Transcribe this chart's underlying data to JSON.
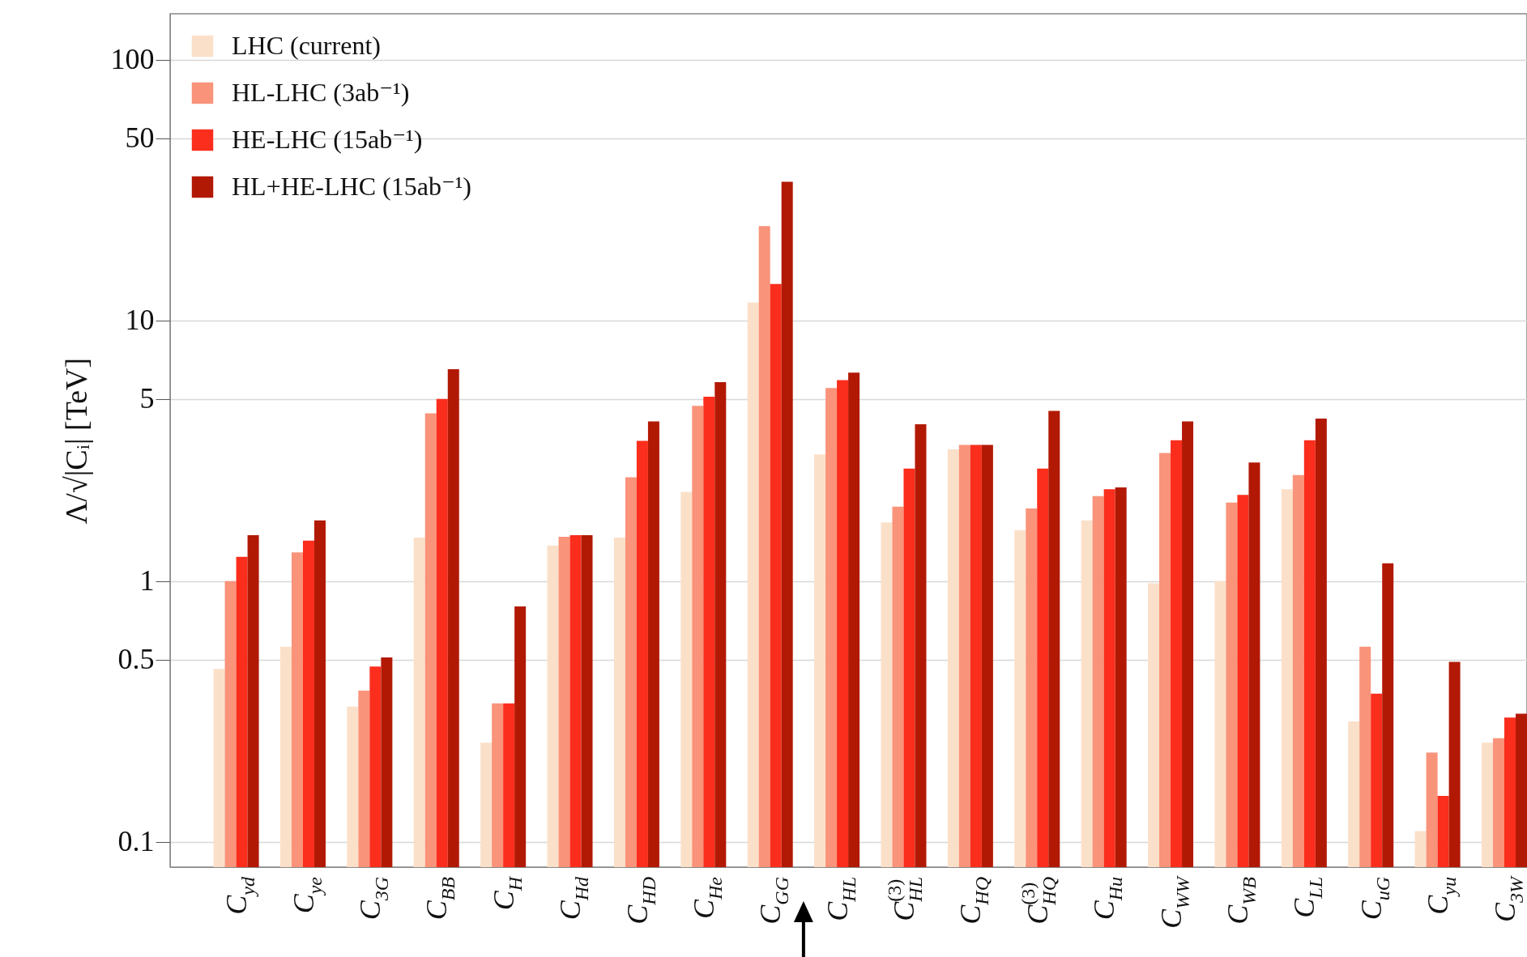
{
  "chart_data": {
    "type": "bar",
    "ylabel": "Λ/√|Cᵢ| [TeV]",
    "categories": [
      "C$_{yd}$",
      "C$_{ye}$",
      "C$_{3G}$",
      "C$_{BB}$",
      "C$_{H}$",
      "C$_{Hd}$",
      "C$_{HD}$",
      "C$_{He}$",
      "C$_{GG}$",
      "C$_{HL}$",
      "C$^{(3)}$$_{HL}$",
      "C$_{HQ}$",
      "C$^{(3)}$$_{HQ}$",
      "C$_{Hu}$",
      "C$_{WW}$",
      "C$_{WB}$",
      "C$_{LL}$",
      "C$_{uG}$",
      "C$_{yu}$",
      "C$_{3W}$"
    ],
    "series": [
      {
        "name": "LHC (current)",
        "color": "#fbe0c9",
        "values": [
          0.46,
          0.56,
          0.33,
          1.47,
          0.24,
          1.37,
          1.47,
          2.2,
          11.7,
          3.06,
          1.68,
          3.2,
          1.57,
          1.71,
          0.98,
          1.0,
          2.25,
          0.29,
          0.11,
          0.24
        ]
      },
      {
        "name": "HL-LHC (3ab⁻¹)",
        "color": "#f9937a",
        "values": [
          1.0,
          1.29,
          0.38,
          4.4,
          0.34,
          1.48,
          2.5,
          4.7,
          23,
          5.5,
          1.93,
          3.33,
          1.9,
          2.12,
          3.1,
          2.0,
          2.55,
          0.56,
          0.22,
          0.25
        ]
      },
      {
        "name": "HE-LHC (15ab⁻¹)",
        "color": "#fb2d1c",
        "values": [
          1.24,
          1.43,
          0.47,
          5.0,
          0.34,
          1.5,
          3.45,
          5.1,
          13.8,
          5.9,
          2.7,
          3.33,
          2.7,
          2.25,
          3.47,
          2.14,
          3.47,
          0.37,
          0.15,
          0.3
        ]
      },
      {
        "name": "HL+HE-LHC (15ab⁻¹)",
        "color": "#b21905",
        "values": [
          1.5,
          1.71,
          0.51,
          6.5,
          0.8,
          1.5,
          4.1,
          5.8,
          34,
          6.3,
          4.0,
          3.33,
          4.5,
          2.29,
          4.1,
          2.85,
          4.2,
          1.17,
          0.49,
          0.31
        ]
      }
    ],
    "log": true,
    "ylim": [
      0.08,
      150
    ],
    "yticks": [
      0.1,
      0.5,
      1,
      5,
      10,
      50,
      100
    ],
    "grid": "y",
    "legend": "top left"
  }
}
